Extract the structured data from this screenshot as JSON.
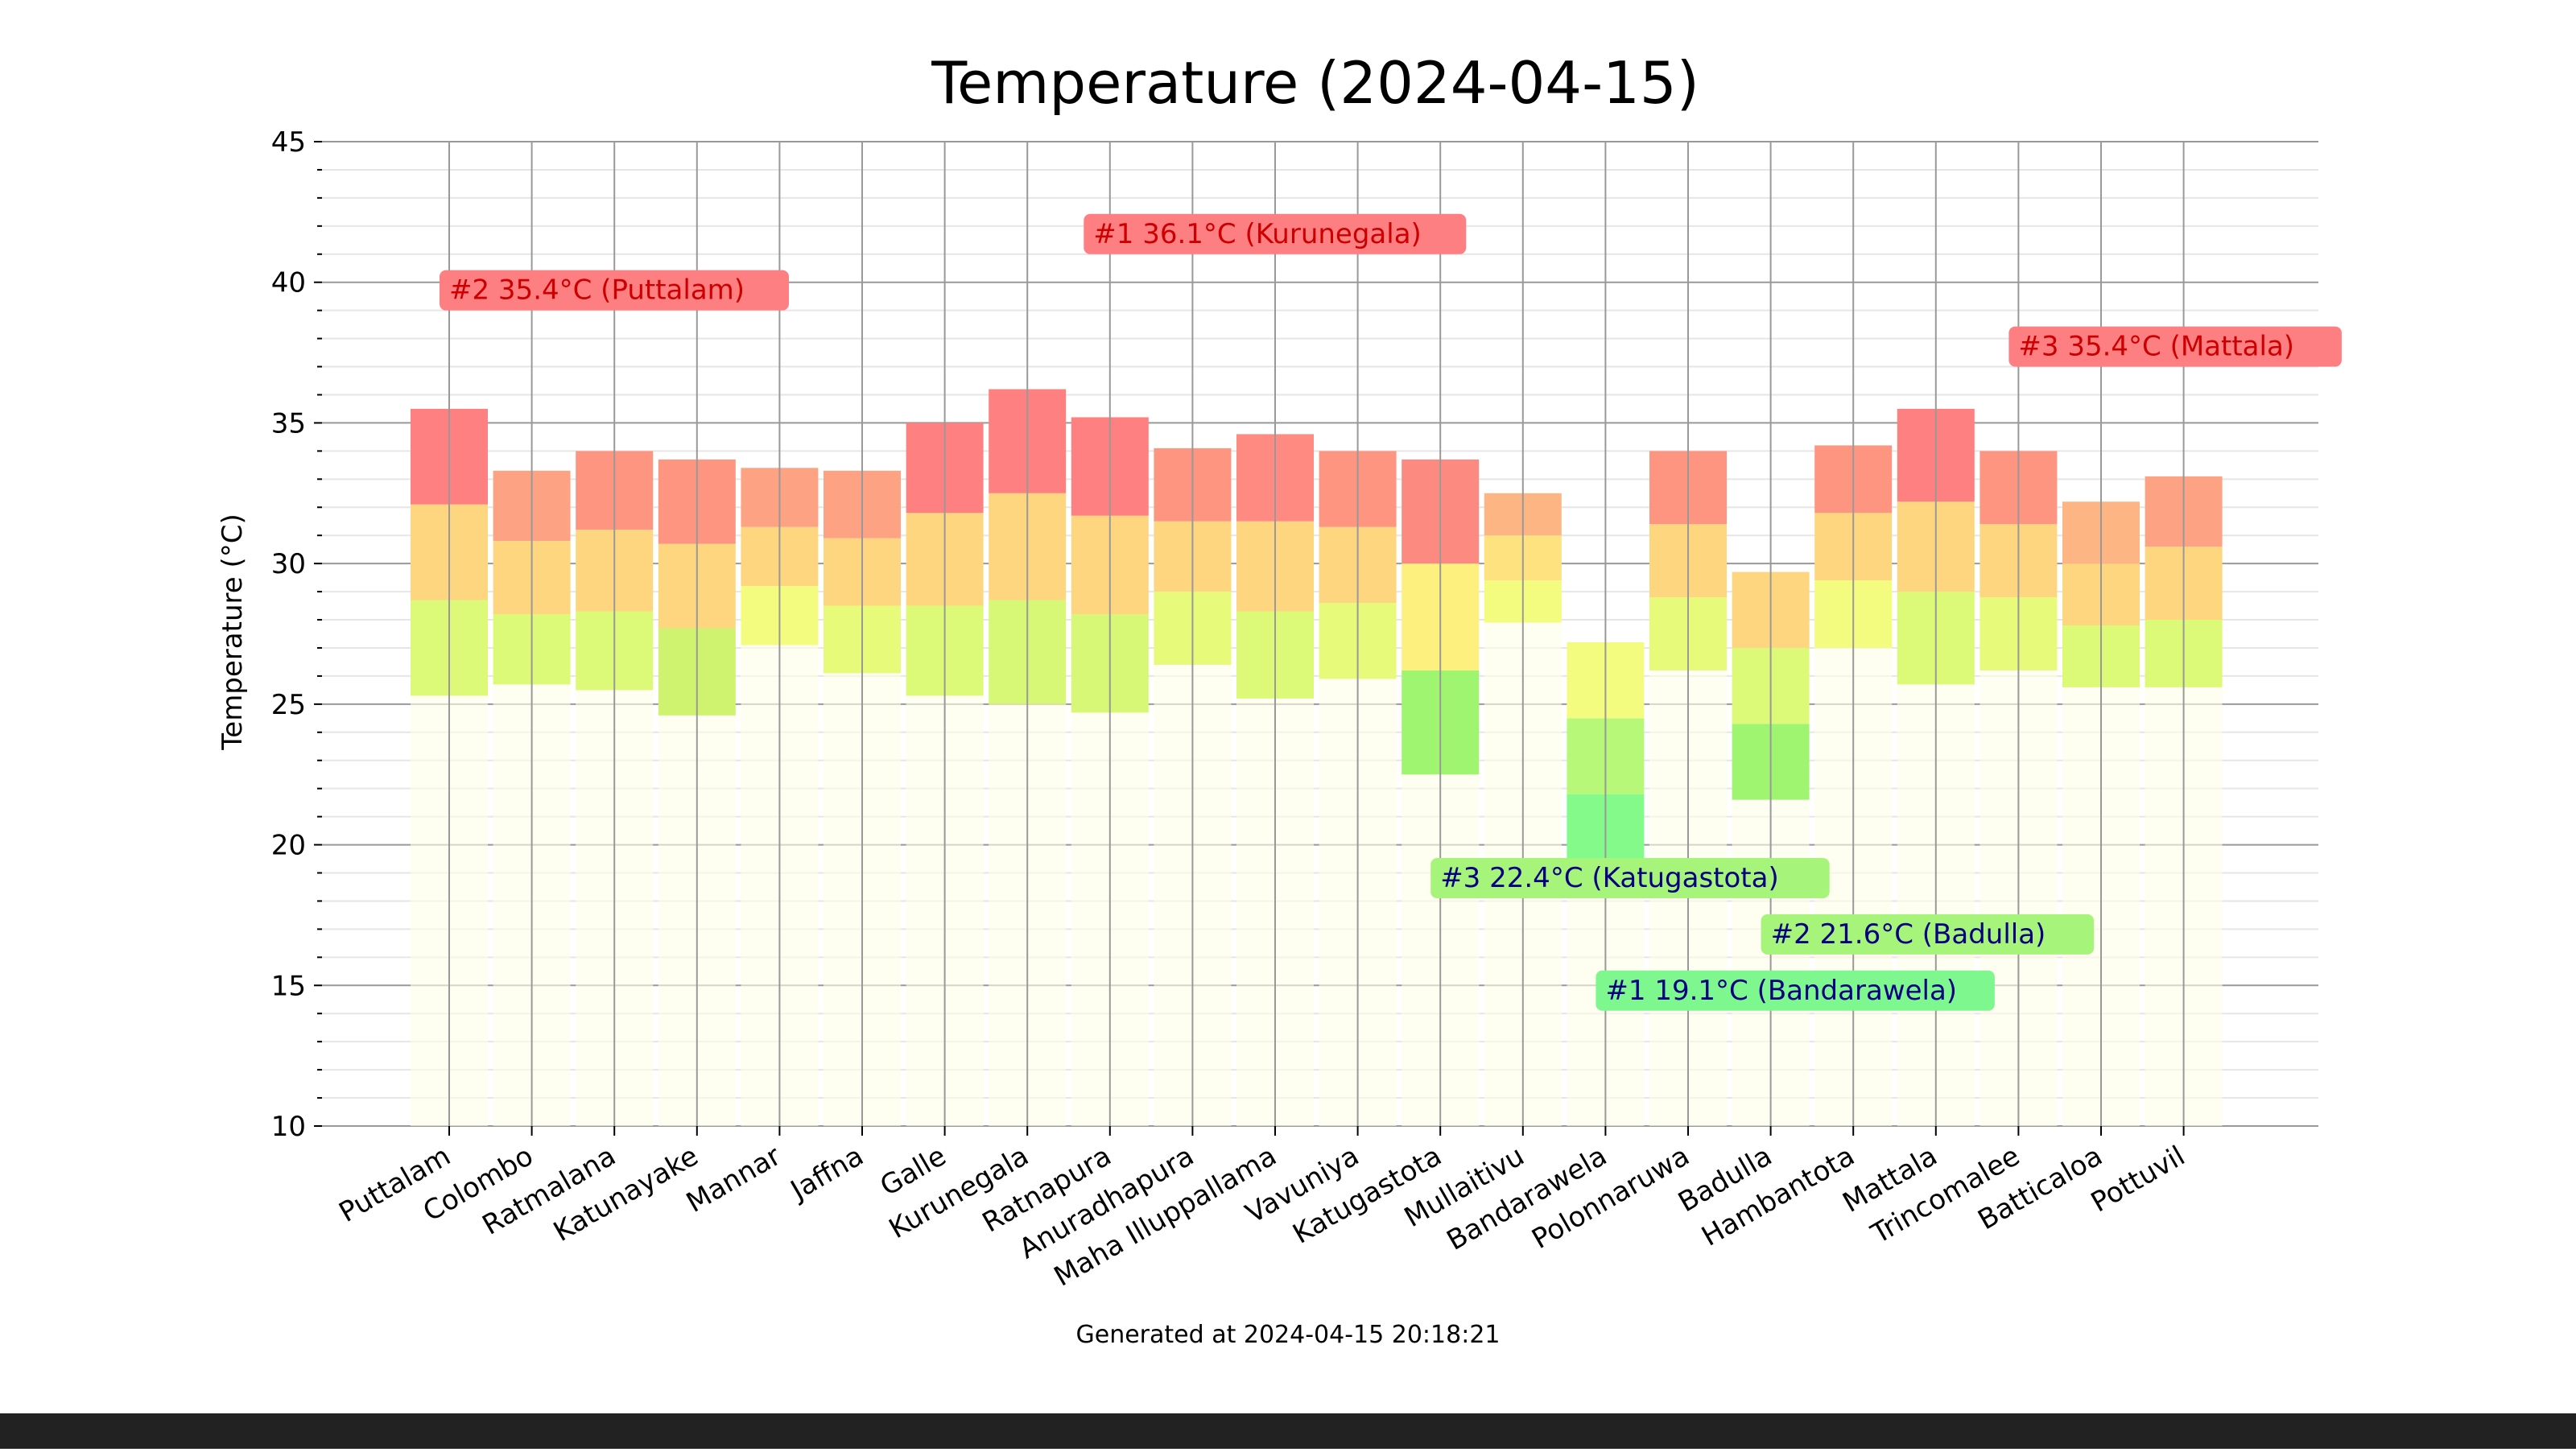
{
  "chart_data": {
    "type": "bar",
    "title": "Temperature (2024-04-15)",
    "ylabel": "Temperature (°C)",
    "xlabel": "",
    "ylim": [
      10,
      45
    ],
    "yticks": [
      10,
      15,
      20,
      25,
      30,
      35,
      40,
      45
    ],
    "grid": true,
    "footer": "Generated at 2024-04-15 20:18:21",
    "categories": [
      "Puttalam",
      "Colombo",
      "Ratmalana",
      "Katunayake",
      "Mannar",
      "Jaffna",
      "Galle",
      "Kurunegala",
      "Ratnapura",
      "Anuradhapura",
      "Maha Illuppallama",
      "Vavuniya",
      "Katugastota",
      "Mullaitivu",
      "Bandarawela",
      "Polonnaruwa",
      "Badulla",
      "Hambantota",
      "Mattala",
      "Trincomalee",
      "Batticaloa",
      "Pottuvil"
    ],
    "bands": [
      {
        "top": 35.5,
        "segments": [
          [
            25.3,
            28.7,
            "#dcf978"
          ],
          [
            28.7,
            32.1,
            "#fdd67f"
          ],
          [
            32.1,
            35.5,
            "#fe8081"
          ]
        ]
      },
      {
        "top": 33.3,
        "segments": [
          [
            25.7,
            28.2,
            "#dcf978"
          ],
          [
            28.2,
            30.8,
            "#fdd67f"
          ],
          [
            30.8,
            33.3,
            "#fda383"
          ]
        ]
      },
      {
        "top": 34.0,
        "segments": [
          [
            25.5,
            28.3,
            "#dcf978"
          ],
          [
            28.3,
            31.2,
            "#fdd67f"
          ],
          [
            31.2,
            34.0,
            "#fd9580"
          ]
        ]
      },
      {
        "top": 33.7,
        "segments": [
          [
            24.6,
            27.7,
            "#cff36e"
          ],
          [
            27.7,
            30.7,
            "#fdd67f"
          ],
          [
            30.7,
            33.7,
            "#fd9580"
          ]
        ]
      },
      {
        "top": 33.4,
        "segments": [
          [
            27.1,
            29.2,
            "#f4fc7f"
          ],
          [
            29.2,
            31.3,
            "#fdd67f"
          ],
          [
            31.3,
            33.4,
            "#fda383"
          ]
        ]
      },
      {
        "top": 33.3,
        "segments": [
          [
            26.1,
            28.5,
            "#e7fa79"
          ],
          [
            28.5,
            30.9,
            "#fdd67f"
          ],
          [
            30.9,
            33.3,
            "#fda383"
          ]
        ]
      },
      {
        "top": 35.0,
        "segments": [
          [
            25.3,
            28.5,
            "#dcf978"
          ],
          [
            28.5,
            31.8,
            "#fdd67f"
          ],
          [
            31.8,
            35.0,
            "#fe8081"
          ]
        ]
      },
      {
        "top": 36.2,
        "segments": [
          [
            25.0,
            28.7,
            "#d6f876"
          ],
          [
            28.7,
            32.5,
            "#fdd67f"
          ],
          [
            32.5,
            36.2,
            "#fe8081"
          ]
        ]
      },
      {
        "top": 35.2,
        "segments": [
          [
            24.7,
            28.2,
            "#d6f876"
          ],
          [
            28.2,
            31.7,
            "#fdd67f"
          ],
          [
            31.7,
            35.2,
            "#fe8081"
          ]
        ]
      },
      {
        "top": 34.1,
        "segments": [
          [
            26.4,
            29.0,
            "#e7fa79"
          ],
          [
            29.0,
            31.5,
            "#fdd67f"
          ],
          [
            31.5,
            34.1,
            "#fd9580"
          ]
        ]
      },
      {
        "top": 34.6,
        "segments": [
          [
            25.2,
            28.3,
            "#dcf978"
          ],
          [
            28.3,
            31.5,
            "#fdd67f"
          ],
          [
            31.5,
            34.6,
            "#fe8a81"
          ]
        ]
      },
      {
        "top": 34.0,
        "segments": [
          [
            25.9,
            28.6,
            "#e7fa79"
          ],
          [
            28.6,
            31.3,
            "#fdd67f"
          ],
          [
            31.3,
            34.0,
            "#fd9580"
          ]
        ]
      },
      {
        "top": 33.7,
        "segments": [
          [
            22.5,
            26.2,
            "#a0f570"
          ],
          [
            26.2,
            30.0,
            "#fdf07f"
          ],
          [
            30.0,
            33.7,
            "#fd8a81"
          ]
        ]
      },
      {
        "top": 32.5,
        "segments": [
          [
            27.9,
            29.4,
            "#f4fc7f"
          ],
          [
            29.4,
            31.0,
            "#fde27f"
          ],
          [
            31.0,
            32.5,
            "#fdb583"
          ]
        ]
      },
      {
        "top": 27.2,
        "segments": [
          [
            19.1,
            21.8,
            "#84fa8a"
          ],
          [
            21.8,
            24.5,
            "#b8f878"
          ],
          [
            24.5,
            27.2,
            "#f4fc7f"
          ]
        ]
      },
      {
        "top": 34.0,
        "segments": [
          [
            26.2,
            28.8,
            "#e7fa79"
          ],
          [
            28.8,
            31.4,
            "#fdd67f"
          ],
          [
            31.4,
            34.0,
            "#fd9580"
          ]
        ]
      },
      {
        "top": 29.7,
        "segments": [
          [
            21.6,
            24.3,
            "#a0f570"
          ],
          [
            24.3,
            27.0,
            "#dcf978"
          ],
          [
            27.0,
            29.7,
            "#fdd67f"
          ]
        ]
      },
      {
        "top": 34.2,
        "segments": [
          [
            27.0,
            29.4,
            "#f4fc7f"
          ],
          [
            29.4,
            31.8,
            "#fdd67f"
          ],
          [
            31.8,
            34.2,
            "#fd9580"
          ]
        ]
      },
      {
        "top": 35.5,
        "segments": [
          [
            25.7,
            29.0,
            "#dcf978"
          ],
          [
            29.0,
            32.2,
            "#fdd67f"
          ],
          [
            32.2,
            35.5,
            "#fe8081"
          ]
        ]
      },
      {
        "top": 34.0,
        "segments": [
          [
            26.2,
            28.8,
            "#e7fa79"
          ],
          [
            28.8,
            31.4,
            "#fdd67f"
          ],
          [
            31.4,
            34.0,
            "#fd9580"
          ]
        ]
      },
      {
        "top": 32.2,
        "segments": [
          [
            25.6,
            27.8,
            "#dcf978"
          ],
          [
            27.8,
            30.0,
            "#fdd67f"
          ],
          [
            30.0,
            32.2,
            "#fdb583"
          ]
        ]
      },
      {
        "top": 33.1,
        "segments": [
          [
            25.6,
            28.0,
            "#dcf978"
          ],
          [
            28.0,
            30.6,
            "#fdd67f"
          ],
          [
            30.6,
            33.1,
            "#fda383"
          ]
        ]
      }
    ],
    "annotations": [
      {
        "text": "#1 36.1°C (Kurunegala)",
        "x": 7.8,
        "y": 41.4,
        "kind": "hot"
      },
      {
        "text": "#2 35.4°C (Puttalam)",
        "x": 0.0,
        "y": 39.4,
        "kind": "hot"
      },
      {
        "text": "#3 35.4°C (Mattala)",
        "x": 19.0,
        "y": 37.4,
        "kind": "hot"
      },
      {
        "text": "#3 22.4°C (Katugastota)",
        "x": 12.0,
        "y": 18.5,
        "kind": "cold1"
      },
      {
        "text": "#2 21.6°C (Badulla)",
        "x": 16.0,
        "y": 16.5,
        "kind": "cold1"
      },
      {
        "text": "#1 19.1°C (Bandarawela)",
        "x": 14.0,
        "y": 14.5,
        "kind": "cold2"
      }
    ],
    "colors": {
      "hot_box": "#fe7f81",
      "hot_text": "#cc0000",
      "cold1_box": "#a6f57a",
      "cold2_box": "#7ef88e",
      "cold_text": "#000080",
      "grid_major": "#999999",
      "grid_minor": "#e6e6e6"
    }
  }
}
